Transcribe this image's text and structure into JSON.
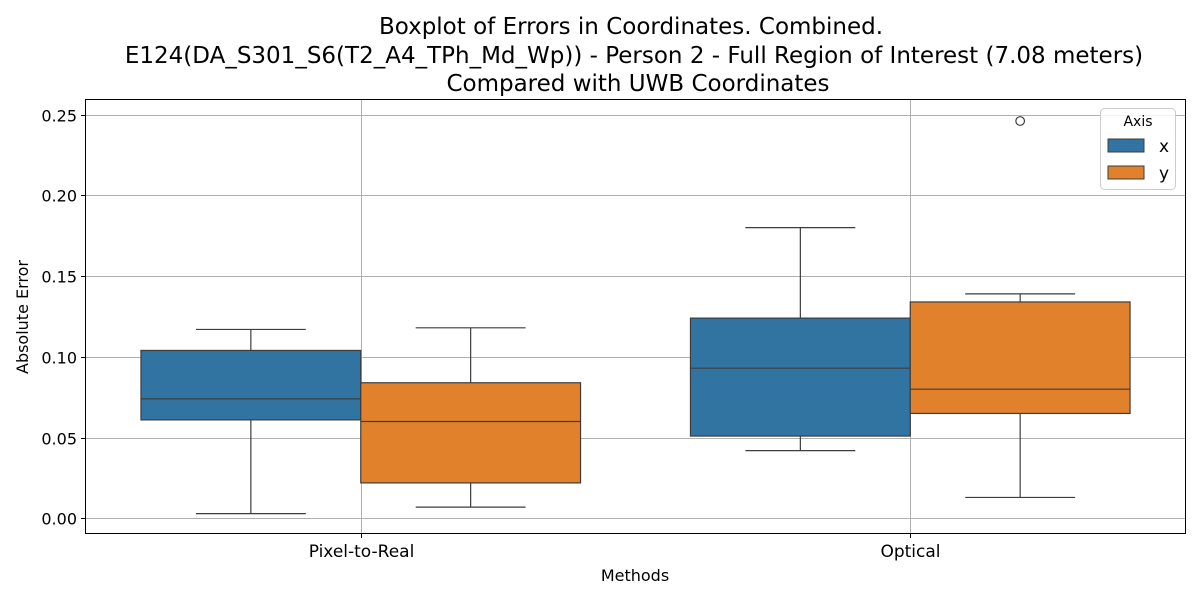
{
  "chart_data": {
    "type": "box",
    "title_lines": [
      "Boxplot of Errors in Coordinates. Combined.",
      "E124(DA_S301_S6(T2_A4_TPh_Md_Wp)) - Person 2 - Full Region of Interest (7.08 meters)",
      "Compared with UWB Coordinates"
    ],
    "xlabel": "Methods",
    "ylabel": "Absolute Error",
    "categories": [
      "Pixel-to-Real",
      "Optical"
    ],
    "ylim": [
      -0.009,
      0.259
    ],
    "yticks": [
      0.0,
      0.05,
      0.1,
      0.15,
      0.2,
      0.25
    ],
    "ytick_labels": [
      "0.00",
      "0.05",
      "0.10",
      "0.15",
      "0.20",
      "0.25"
    ],
    "grid": true,
    "legend": {
      "title": "Axis",
      "position": "top-right"
    },
    "series": [
      {
        "name": "x",
        "color": "#3274a1",
        "boxes": [
          {
            "category": "Pixel-to-Real",
            "whisker_low": 0.003,
            "q1": 0.061,
            "median": 0.074,
            "q3": 0.104,
            "whisker_high": 0.117,
            "outliers": []
          },
          {
            "category": "Optical",
            "whisker_low": 0.042,
            "q1": 0.051,
            "median": 0.093,
            "q3": 0.124,
            "whisker_high": 0.18,
            "outliers": []
          }
        ]
      },
      {
        "name": "y",
        "color": "#e1812c",
        "boxes": [
          {
            "category": "Pixel-to-Real",
            "whisker_low": 0.007,
            "q1": 0.022,
            "median": 0.06,
            "q3": 0.084,
            "whisker_high": 0.118,
            "outliers": []
          },
          {
            "category": "Optical",
            "whisker_low": 0.013,
            "q1": 0.065,
            "median": 0.08,
            "q3": 0.134,
            "whisker_high": 0.139,
            "outliers": [
              0.246
            ]
          }
        ]
      }
    ]
  }
}
